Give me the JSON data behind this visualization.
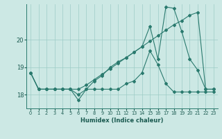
{
  "xlabel": "Humidex (Indice chaleur)",
  "xlim": [
    -0.5,
    23.5
  ],
  "ylim": [
    17.5,
    21.3
  ],
  "yticks": [
    18,
    19,
    20
  ],
  "xticks": [
    0,
    1,
    2,
    3,
    4,
    5,
    6,
    7,
    8,
    9,
    10,
    11,
    12,
    13,
    14,
    15,
    16,
    17,
    18,
    19,
    20,
    21,
    22,
    23
  ],
  "bg_color": "#cce8e4",
  "line_color": "#2a7a6e",
  "series1_y": [
    18.8,
    18.2,
    18.2,
    18.2,
    18.2,
    18.2,
    17.8,
    18.2,
    18.2,
    18.2,
    18.2,
    18.2,
    18.4,
    18.5,
    18.8,
    19.6,
    19.1,
    18.4,
    18.1,
    18.1,
    18.1,
    18.1,
    18.1,
    18.1
  ],
  "series2_y": [
    18.8,
    18.2,
    18.2,
    18.2,
    18.2,
    18.2,
    18.0,
    18.2,
    18.5,
    18.7,
    19.0,
    19.2,
    19.35,
    19.55,
    19.75,
    20.5,
    19.3,
    21.2,
    21.15,
    20.3,
    19.3,
    18.9,
    18.2,
    18.2
  ],
  "series3_y": [
    18.8,
    18.2,
    18.2,
    18.2,
    18.2,
    18.2,
    18.2,
    18.35,
    18.55,
    18.75,
    18.95,
    19.15,
    19.35,
    19.55,
    19.75,
    19.95,
    20.15,
    20.35,
    20.55,
    20.7,
    20.9,
    21.0,
    18.2,
    18.2
  ]
}
